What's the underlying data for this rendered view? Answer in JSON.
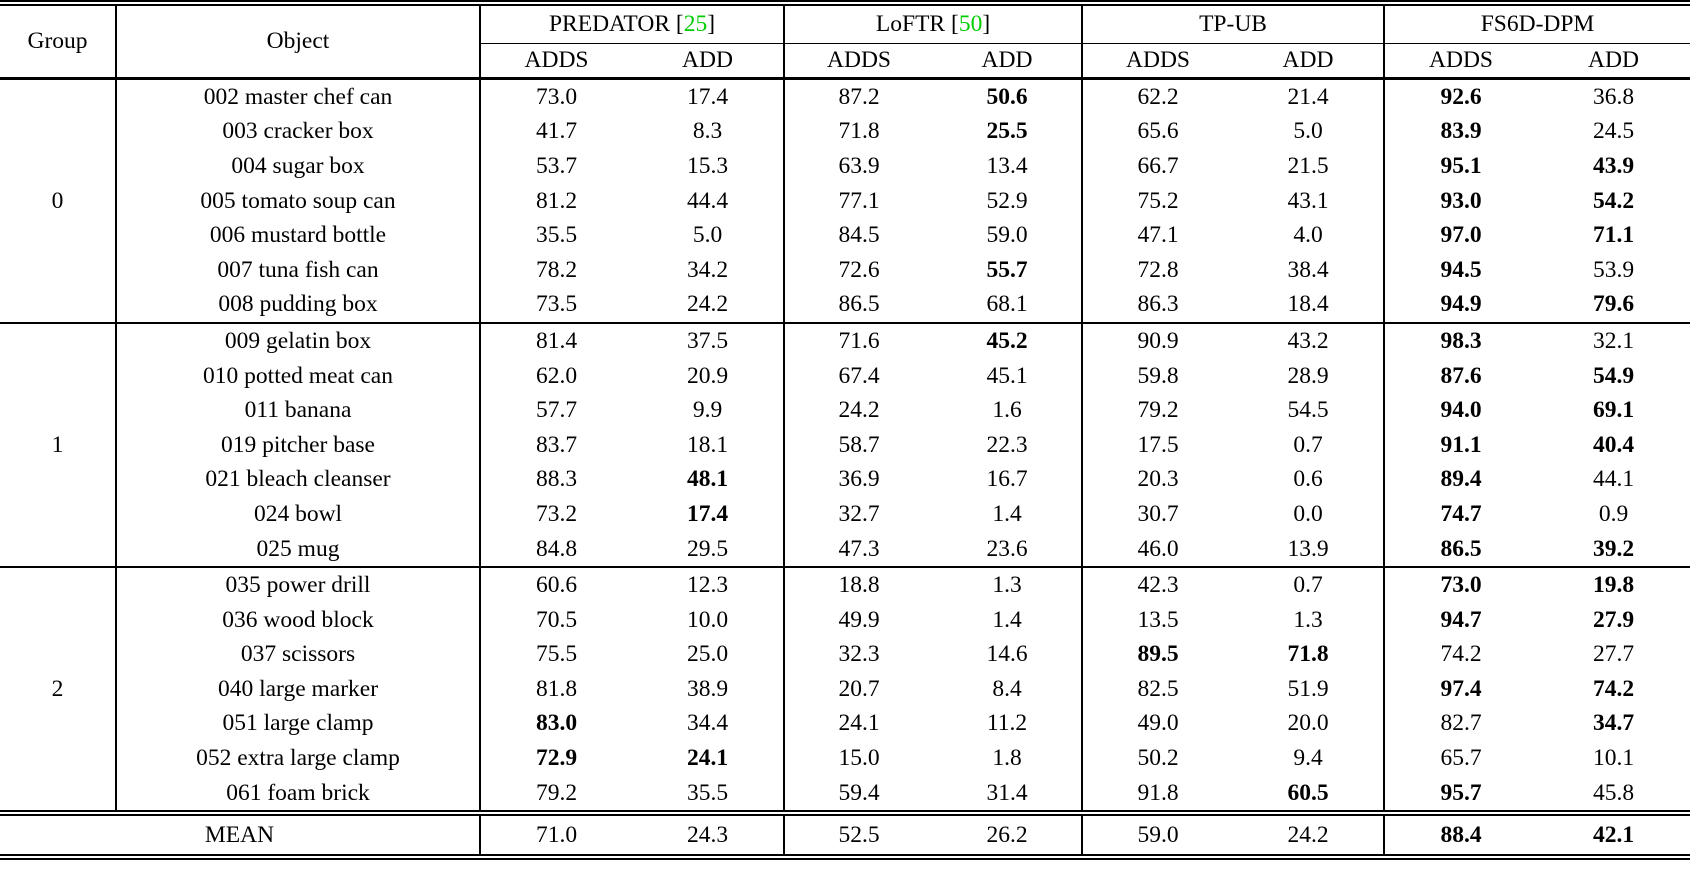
{
  "header": {
    "group": "Group",
    "object": "Object",
    "methods": [
      {
        "name": "PREDATOR",
        "cite": "25"
      },
      {
        "name": "LoFTR",
        "cite": "50"
      },
      {
        "name": "TP-UB",
        "cite": ""
      },
      {
        "name": "FS6D-DPM",
        "cite": ""
      }
    ],
    "subheader": [
      "ADDS",
      "ADD",
      "ADDS",
      "ADD",
      "ADDS",
      "ADD",
      "ADDS",
      "ADD"
    ]
  },
  "colors": {
    "cite_green": "#00cc00",
    "text": "#000000",
    "background": "#ffffff"
  },
  "groups": [
    {
      "label": "0",
      "rows": [
        {
          "object": "002 master chef can",
          "values": [
            "73.0",
            "17.4",
            "87.2",
            "50.6",
            "62.2",
            "21.4",
            "92.6",
            "36.8"
          ],
          "bold": [
            0,
            0,
            0,
            1,
            0,
            0,
            1,
            0
          ]
        },
        {
          "object": "003 cracker box",
          "values": [
            "41.7",
            "8.3",
            "71.8",
            "25.5",
            "65.6",
            "5.0",
            "83.9",
            "24.5"
          ],
          "bold": [
            0,
            0,
            0,
            1,
            0,
            0,
            1,
            0
          ]
        },
        {
          "object": "004 sugar box",
          "values": [
            "53.7",
            "15.3",
            "63.9",
            "13.4",
            "66.7",
            "21.5",
            "95.1",
            "43.9"
          ],
          "bold": [
            0,
            0,
            0,
            0,
            0,
            0,
            1,
            1
          ]
        },
        {
          "object": "005 tomato soup can",
          "values": [
            "81.2",
            "44.4",
            "77.1",
            "52.9",
            "75.2",
            "43.1",
            "93.0",
            "54.2"
          ],
          "bold": [
            0,
            0,
            0,
            0,
            0,
            0,
            1,
            1
          ]
        },
        {
          "object": "006 mustard bottle",
          "values": [
            "35.5",
            "5.0",
            "84.5",
            "59.0",
            "47.1",
            "4.0",
            "97.0",
            "71.1"
          ],
          "bold": [
            0,
            0,
            0,
            0,
            0,
            0,
            1,
            1
          ]
        },
        {
          "object": "007 tuna fish can",
          "values": [
            "78.2",
            "34.2",
            "72.6",
            "55.7",
            "72.8",
            "38.4",
            "94.5",
            "53.9"
          ],
          "bold": [
            0,
            0,
            0,
            1,
            0,
            0,
            1,
            0
          ]
        },
        {
          "object": "008 pudding box",
          "values": [
            "73.5",
            "24.2",
            "86.5",
            "68.1",
            "86.3",
            "18.4",
            "94.9",
            "79.6"
          ],
          "bold": [
            0,
            0,
            0,
            0,
            0,
            0,
            1,
            1
          ]
        }
      ]
    },
    {
      "label": "1",
      "rows": [
        {
          "object": "009 gelatin box",
          "values": [
            "81.4",
            "37.5",
            "71.6",
            "45.2",
            "90.9",
            "43.2",
            "98.3",
            "32.1"
          ],
          "bold": [
            0,
            0,
            0,
            1,
            0,
            0,
            1,
            0
          ]
        },
        {
          "object": "010 potted meat can",
          "values": [
            "62.0",
            "20.9",
            "67.4",
            "45.1",
            "59.8",
            "28.9",
            "87.6",
            "54.9"
          ],
          "bold": [
            0,
            0,
            0,
            0,
            0,
            0,
            1,
            1
          ]
        },
        {
          "object": "011 banana",
          "values": [
            "57.7",
            "9.9",
            "24.2",
            "1.6",
            "79.2",
            "54.5",
            "94.0",
            "69.1"
          ],
          "bold": [
            0,
            0,
            0,
            0,
            0,
            0,
            1,
            1
          ]
        },
        {
          "object": "019 pitcher base",
          "values": [
            "83.7",
            "18.1",
            "58.7",
            "22.3",
            "17.5",
            "0.7",
            "91.1",
            "40.4"
          ],
          "bold": [
            0,
            0,
            0,
            0,
            0,
            0,
            1,
            1
          ]
        },
        {
          "object": "021 bleach cleanser",
          "values": [
            "88.3",
            "48.1",
            "36.9",
            "16.7",
            "20.3",
            "0.6",
            "89.4",
            "44.1"
          ],
          "bold": [
            0,
            1,
            0,
            0,
            0,
            0,
            1,
            0
          ]
        },
        {
          "object": "024 bowl",
          "values": [
            "73.2",
            "17.4",
            "32.7",
            "1.4",
            "30.7",
            "0.0",
            "74.7",
            "0.9"
          ],
          "bold": [
            0,
            1,
            0,
            0,
            0,
            0,
            1,
            0
          ]
        },
        {
          "object": "025 mug",
          "values": [
            "84.8",
            "29.5",
            "47.3",
            "23.6",
            "46.0",
            "13.9",
            "86.5",
            "39.2"
          ],
          "bold": [
            0,
            0,
            0,
            0,
            0,
            0,
            1,
            1
          ]
        }
      ]
    },
    {
      "label": "2",
      "rows": [
        {
          "object": "035 power drill",
          "values": [
            "60.6",
            "12.3",
            "18.8",
            "1.3",
            "42.3",
            "0.7",
            "73.0",
            "19.8"
          ],
          "bold": [
            0,
            0,
            0,
            0,
            0,
            0,
            1,
            1
          ]
        },
        {
          "object": "036 wood block",
          "values": [
            "70.5",
            "10.0",
            "49.9",
            "1.4",
            "13.5",
            "1.3",
            "94.7",
            "27.9"
          ],
          "bold": [
            0,
            0,
            0,
            0,
            0,
            0,
            1,
            1
          ]
        },
        {
          "object": "037 scissors",
          "values": [
            "75.5",
            "25.0",
            "32.3",
            "14.6",
            "89.5",
            "71.8",
            "74.2",
            "27.7"
          ],
          "bold": [
            0,
            0,
            0,
            0,
            1,
            1,
            0,
            0
          ]
        },
        {
          "object": "040 large marker",
          "values": [
            "81.8",
            "38.9",
            "20.7",
            "8.4",
            "82.5",
            "51.9",
            "97.4",
            "74.2"
          ],
          "bold": [
            0,
            0,
            0,
            0,
            0,
            0,
            1,
            1
          ]
        },
        {
          "object": "051 large clamp",
          "values": [
            "83.0",
            "34.4",
            "24.1",
            "11.2",
            "49.0",
            "20.0",
            "82.7",
            "34.7"
          ],
          "bold": [
            1,
            0,
            0,
            0,
            0,
            0,
            0,
            1
          ]
        },
        {
          "object": "052 extra large clamp",
          "values": [
            "72.9",
            "24.1",
            "15.0",
            "1.8",
            "50.2",
            "9.4",
            "65.7",
            "10.1"
          ],
          "bold": [
            1,
            1,
            0,
            0,
            0,
            0,
            0,
            0
          ]
        },
        {
          "object": "061 foam brick",
          "values": [
            "79.2",
            "35.5",
            "59.4",
            "31.4",
            "91.8",
            "60.5",
            "95.7",
            "45.8"
          ],
          "bold": [
            0,
            0,
            0,
            0,
            0,
            1,
            1,
            0
          ]
        }
      ]
    }
  ],
  "mean": {
    "label": "MEAN",
    "values": [
      "71.0",
      "24.3",
      "52.5",
      "26.2",
      "59.0",
      "24.2",
      "88.4",
      "42.1"
    ],
    "bold": [
      0,
      0,
      0,
      0,
      0,
      0,
      1,
      1
    ]
  }
}
